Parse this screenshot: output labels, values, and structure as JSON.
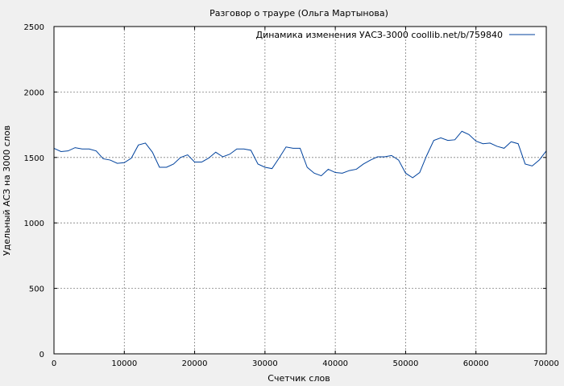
{
  "chart_data": {
    "type": "line",
    "title": "Разговор о трауре (Ольга Мартынова)",
    "xlabel": "Счетчик слов",
    "ylabel": "Удельный АСЗ на 3000 слов",
    "xlim": [
      0,
      70000
    ],
    "ylim": [
      0,
      2500
    ],
    "xticks": [
      0,
      10000,
      20000,
      30000,
      40000,
      50000,
      60000,
      70000
    ],
    "yticks": [
      0,
      500,
      1000,
      1500,
      2000,
      2500
    ],
    "grid": true,
    "legend_position": "top-right",
    "series": [
      {
        "name": "Динамика изменения УАСЗ-3000 coollib.net/b/759840",
        "color": "#00429d",
        "x": [
          0,
          1000,
          2000,
          3000,
          4000,
          5000,
          6000,
          7000,
          8000,
          9000,
          10000,
          11000,
          12000,
          13000,
          14000,
          15000,
          16000,
          17000,
          18000,
          19000,
          20000,
          21000,
          22000,
          23000,
          24000,
          25000,
          26000,
          27000,
          28000,
          29000,
          30000,
          31000,
          32000,
          33000,
          34000,
          35000,
          36000,
          37000,
          38000,
          39000,
          40000,
          41000,
          42000,
          43000,
          44000,
          45000,
          46000,
          47000,
          48000,
          49000,
          50000,
          51000,
          52000,
          53000,
          54000,
          55000,
          56000,
          57000,
          58000,
          59000,
          60000,
          61000,
          62000,
          63000,
          64000,
          65000,
          66000,
          67000,
          68000,
          69000,
          70000
        ],
        "y": [
          1570,
          1545,
          1550,
          1575,
          1565,
          1565,
          1550,
          1490,
          1480,
          1455,
          1460,
          1495,
          1595,
          1610,
          1540,
          1425,
          1425,
          1450,
          1500,
          1520,
          1465,
          1465,
          1495,
          1540,
          1505,
          1525,
          1565,
          1565,
          1555,
          1450,
          1425,
          1415,
          1495,
          1580,
          1570,
          1570,
          1425,
          1380,
          1360,
          1410,
          1385,
          1380,
          1400,
          1410,
          1450,
          1480,
          1505,
          1505,
          1515,
          1480,
          1380,
          1345,
          1385,
          1515,
          1630,
          1650,
          1630,
          1635,
          1700,
          1675,
          1625,
          1605,
          1610,
          1585,
          1570,
          1620,
          1605,
          1450,
          1435,
          1480,
          1550
        ]
      }
    ]
  }
}
